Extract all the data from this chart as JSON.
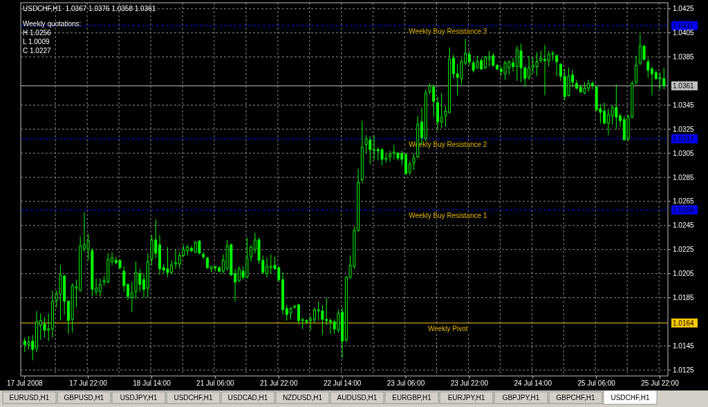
{
  "chart_data": [
    {
      "type": "candlestick",
      "title": "USDCHF,H1  1.0367 1.0376 1.0358 1.0361",
      "color": "#00ff00",
      "grid": true,
      "annotations": [
        "Weekly quotations:",
        "H 1.0256",
        "L 1.0009",
        "C 1.0227",
        "1.0411",
        "1.0317",
        "1.0258",
        "1.0164",
        "1.0361"
      ],
      "ylim": [
        1.012,
        1.043
      ],
      "yticks": [
        {
          "value": 1.0125,
          "label": "1.0125"
        },
        {
          "value": 1.0145,
          "label": "1.0145"
        },
        {
          "value": 1.0185,
          "label": "1.0185"
        },
        {
          "value": 1.0205,
          "label": "1.0205"
        },
        {
          "value": 1.0225,
          "label": "1.0225"
        },
        {
          "value": 1.0245,
          "label": "1.0245"
        },
        {
          "value": 1.0265,
          "label": "1.0265"
        },
        {
          "value": 1.0285,
          "label": "1.0285"
        },
        {
          "value": 1.0305,
          "label": "1.0305"
        },
        {
          "value": 1.0325,
          "label": "1.0325"
        },
        {
          "value": 1.0345,
          "label": "1.0345"
        },
        {
          "value": 1.0385,
          "label": "1.0385"
        },
        {
          "value": 1.0405,
          "label": "1.0405"
        },
        {
          "value": 1.0425,
          "label": "1.0425"
        }
      ],
      "ref_lines": [
        {
          "axis": "y",
          "value": 1.0411,
          "label": "Weekly Buy Resistance 3",
          "color": "#0000ff",
          "line_style": "dashed"
        },
        {
          "axis": "y",
          "value": 1.0317,
          "label": "Weekly Buy Resistance 2",
          "color": "#0000ff",
          "line_style": "dashed"
        },
        {
          "axis": "y",
          "value": 1.0258,
          "label": "Weekly Buy Resistance 1",
          "color": "#0000ff",
          "line_style": "dashed"
        },
        {
          "axis": "y",
          "value": 1.0164,
          "label": "Weekly Pivot",
          "color": "#ffcc00",
          "line_style": "solid"
        },
        {
          "axis": "y",
          "value": 1.0361,
          "label": null,
          "color": "#c0c0c0",
          "line_style": "solid"
        }
      ],
      "categories": [
        "17 Jul 2008",
        null,
        null,
        null,
        null,
        null,
        null,
        null,
        null,
        null,
        null,
        null,
        null,
        null,
        null,
        null,
        "17 Jul 22:00",
        null,
        null,
        null,
        null,
        null,
        null,
        null,
        null,
        null,
        null,
        null,
        null,
        null,
        null,
        null,
        "18 Jul 14:00",
        null,
        null,
        null,
        null,
        null,
        null,
        null,
        null,
        null,
        null,
        null,
        null,
        null,
        null,
        null,
        "21 Jul 06:00",
        null,
        null,
        null,
        null,
        null,
        null,
        null,
        null,
        null,
        null,
        null,
        null,
        null,
        null,
        null,
        "21 Jul 22:00",
        null,
        null,
        null,
        null,
        null,
        null,
        null,
        null,
        null,
        null,
        null,
        null,
        null,
        null,
        null,
        "22 Jul 14:00",
        null,
        null,
        null,
        null,
        null,
        null,
        null,
        null,
        null,
        null,
        null,
        null,
        null,
        null,
        null,
        "23 Jul 06:00",
        null,
        null,
        null,
        null,
        null,
        null,
        null,
        null,
        null,
        null,
        null,
        null,
        null,
        null,
        null,
        "23 Jul 22:00",
        null,
        null,
        null,
        null,
        null,
        null,
        null,
        null,
        null,
        null,
        null,
        null,
        null,
        null,
        null,
        "24 Jul 14:00",
        null,
        null,
        null,
        null,
        null,
        null,
        null,
        null,
        null,
        null,
        null,
        null,
        null,
        null,
        null,
        "25 Jul 06:00",
        null,
        null,
        null,
        null,
        null,
        null,
        null,
        null,
        null,
        null,
        null,
        null,
        null,
        null,
        null,
        "25 Jul 22:00",
        null
      ],
      "ohlc": [
        [
          1.0149,
          1.0152,
          1.014,
          1.0146
        ],
        [
          1.0146,
          1.0153,
          1.0142,
          1.0148
        ],
        [
          1.0149,
          1.0154,
          1.0133,
          1.0142
        ],
        [
          1.0143,
          1.0174,
          1.014,
          1.0165
        ],
        [
          1.0162,
          1.0172,
          1.015,
          1.0166
        ],
        [
          1.0163,
          1.0169,
          1.0152,
          1.0158
        ],
        [
          1.0158,
          1.0172,
          1.0149,
          1.0159
        ],
        [
          1.0159,
          1.0191,
          1.0152,
          1.0182
        ],
        [
          1.0183,
          1.0191,
          1.0177,
          1.0188
        ],
        [
          1.0188,
          1.0212,
          1.0166,
          1.0204
        ],
        [
          1.0203,
          1.0204,
          1.0171,
          1.0182
        ],
        [
          1.0182,
          1.0183,
          1.0155,
          1.0166
        ],
        [
          1.0167,
          1.0197,
          1.0156,
          1.0195
        ],
        [
          1.0193,
          1.02,
          1.0177,
          1.0194
        ],
        [
          1.0191,
          1.0236,
          1.019,
          1.0228
        ],
        [
          1.0226,
          1.0256,
          1.0223,
          1.0229
        ],
        [
          1.0225,
          1.0238,
          1.0216,
          1.0232
        ],
        [
          1.0224,
          1.0226,
          1.0186,
          1.0192
        ],
        [
          1.019,
          1.0201,
          1.0187,
          1.0193
        ],
        [
          1.019,
          1.0201,
          1.0186,
          1.0196
        ],
        [
          1.0198,
          1.0203,
          1.0195,
          1.0199
        ],
        [
          1.0198,
          1.0222,
          1.0197,
          1.0217
        ],
        [
          1.0215,
          1.0223,
          1.0212,
          1.0218
        ],
        [
          1.0216,
          1.0219,
          1.0213,
          1.0214
        ],
        [
          1.0216,
          1.0217,
          1.0209,
          1.021
        ],
        [
          1.0207,
          1.0211,
          1.019,
          1.0195
        ],
        [
          1.0196,
          1.0197,
          1.0183,
          1.0186
        ],
        [
          1.0185,
          1.0198,
          1.0173,
          1.0189
        ],
        [
          1.019,
          1.0215,
          1.0184,
          1.0206
        ],
        [
          1.0205,
          1.0209,
          1.019,
          1.0196
        ],
        [
          1.02,
          1.0205,
          1.0185,
          1.0192
        ],
        [
          1.0193,
          1.0222,
          1.0185,
          1.0215
        ],
        [
          1.0217,
          1.0237,
          1.0212,
          1.0233
        ],
        [
          1.0233,
          1.025,
          1.0218,
          1.0222
        ],
        [
          1.0229,
          1.0237,
          1.0204,
          1.0209
        ],
        [
          1.021,
          1.0213,
          1.0205,
          1.0208
        ],
        [
          1.0209,
          1.0227,
          1.0202,
          1.0206
        ],
        [
          1.0206,
          1.0216,
          1.0205,
          1.0212
        ],
        [
          1.0213,
          1.0225,
          1.0209,
          1.0214
        ],
        [
          1.0213,
          1.0223,
          1.0209,
          1.022
        ],
        [
          1.022,
          1.0229,
          1.0219,
          1.0225
        ],
        [
          1.0224,
          1.0229,
          1.022,
          1.0227
        ],
        [
          1.0226,
          1.0228,
          1.0223,
          1.0224
        ],
        [
          1.0223,
          1.0232,
          1.0222,
          1.0231
        ],
        [
          1.0232,
          1.0233,
          1.0221,
          1.0222
        ],
        [
          1.0221,
          1.0223,
          1.0217,
          1.0219
        ],
        [
          1.0218,
          1.0219,
          1.0209,
          1.021
        ],
        [
          1.0209,
          1.0211,
          1.0206,
          1.0211
        ],
        [
          1.0211,
          1.0211,
          1.0207,
          1.021
        ],
        [
          1.021,
          1.0211,
          1.0206,
          1.0207
        ],
        [
          1.0207,
          1.0221,
          1.0205,
          1.0216
        ],
        [
          1.0209,
          1.0233,
          1.0208,
          1.0228
        ],
        [
          1.0229,
          1.023,
          1.0203,
          1.0204
        ],
        [
          1.0205,
          1.0209,
          1.0182,
          1.0198
        ],
        [
          1.0199,
          1.0211,
          1.0198,
          1.0209
        ],
        [
          1.0207,
          1.0211,
          1.02,
          1.0202
        ],
        [
          1.0202,
          1.0235,
          1.0201,
          1.0218
        ],
        [
          1.0219,
          1.0229,
          1.0215,
          1.0227
        ],
        [
          1.0225,
          1.0239,
          1.0222,
          1.0233
        ],
        [
          1.0233,
          1.0235,
          1.0213,
          1.0216
        ],
        [
          1.0216,
          1.022,
          1.0205,
          1.0206
        ],
        [
          1.0205,
          1.0218,
          1.0202,
          1.0211
        ],
        [
          1.021,
          1.0221,
          1.0205,
          1.0211
        ],
        [
          1.0212,
          1.0219,
          1.0208,
          1.0209
        ],
        [
          1.021,
          1.0211,
          1.0198,
          1.02
        ],
        [
          1.02,
          1.0206,
          1.0171,
          1.0175
        ],
        [
          1.0176,
          1.0179,
          1.0166,
          1.0171
        ],
        [
          1.0172,
          1.0177,
          1.0167,
          1.0176
        ],
        [
          1.0177,
          1.0179,
          1.0176,
          1.0178
        ],
        [
          1.0179,
          1.018,
          1.0163,
          1.0166
        ],
        [
          1.0166,
          1.0168,
          1.0159,
          1.0167
        ],
        [
          1.0166,
          1.0167,
          1.0163,
          1.0165
        ],
        [
          1.0166,
          1.017,
          1.0158,
          1.0167
        ],
        [
          1.0167,
          1.0177,
          1.0164,
          1.0175
        ],
        [
          1.0174,
          1.0182,
          1.0166,
          1.0175
        ],
        [
          1.0174,
          1.0179,
          1.0154,
          1.0167
        ],
        [
          1.0167,
          1.0185,
          1.0162,
          1.0166
        ],
        [
          1.0166,
          1.0168,
          1.0155,
          1.0165
        ],
        [
          1.0165,
          1.0167,
          1.0155,
          1.0159
        ],
        [
          1.0158,
          1.0175,
          1.0156,
          1.0172
        ],
        [
          1.0173,
          1.0177,
          1.0135,
          1.0149
        ],
        [
          1.015,
          1.0203,
          1.0148,
          1.0202
        ],
        [
          1.0202,
          1.022,
          1.0201,
          1.0212
        ],
        [
          1.0211,
          1.0244,
          1.0209,
          1.0241
        ],
        [
          1.0241,
          1.0292,
          1.024,
          1.0281
        ],
        [
          1.0283,
          1.0332,
          1.028,
          1.031
        ],
        [
          1.0312,
          1.032,
          1.0305,
          1.0317
        ],
        [
          1.0316,
          1.0319,
          1.0296,
          1.0308
        ],
        [
          1.0307,
          1.032,
          1.0299,
          1.0308
        ],
        [
          1.0308,
          1.031,
          1.0299,
          1.0307
        ],
        [
          1.0308,
          1.0309,
          1.0295,
          1.03
        ],
        [
          1.03,
          1.0305,
          1.0297,
          1.0301
        ],
        [
          1.0302,
          1.0307,
          1.0298,
          1.0304
        ],
        [
          1.0305,
          1.0312,
          1.03,
          1.0306
        ],
        [
          1.0305,
          1.0306,
          1.0299,
          1.0301
        ],
        [
          1.0305,
          1.0307,
          1.0295,
          1.03
        ],
        [
          1.0304,
          1.0305,
          1.0287,
          1.0288
        ],
        [
          1.0289,
          1.0298,
          1.0287,
          1.0296
        ],
        [
          1.0297,
          1.0305,
          1.0291,
          1.0301
        ],
        [
          1.0302,
          1.0336,
          1.0301,
          1.0329
        ],
        [
          1.0331,
          1.0343,
          1.0312,
          1.0318
        ],
        [
          1.0317,
          1.0358,
          1.0315,
          1.0355
        ],
        [
          1.0356,
          1.0363,
          1.0354,
          1.0361
        ],
        [
          1.036,
          1.0362,
          1.0335,
          1.0348
        ],
        [
          1.0347,
          1.0352,
          1.0324,
          1.0331
        ],
        [
          1.0331,
          1.0355,
          1.0326,
          1.0335
        ],
        [
          1.0336,
          1.0344,
          1.0327,
          1.034
        ],
        [
          1.0339,
          1.0393,
          1.0338,
          1.0383
        ],
        [
          1.0384,
          1.0387,
          1.0367,
          1.0371
        ],
        [
          1.0371,
          1.0379,
          1.0353,
          1.0368
        ],
        [
          1.0367,
          1.0384,
          1.0362,
          1.0381
        ],
        [
          1.038,
          1.04,
          1.0378,
          1.0388
        ],
        [
          1.0387,
          1.039,
          1.0378,
          1.0381
        ],
        [
          1.038,
          1.0382,
          1.0372,
          1.0374
        ],
        [
          1.0376,
          1.0386,
          1.0375,
          1.0381
        ],
        [
          1.0382,
          1.0384,
          1.0374,
          1.0375
        ],
        [
          1.0376,
          1.0386,
          1.0375,
          1.0385
        ],
        [
          1.0383,
          1.039,
          1.0377,
          1.0385
        ],
        [
          1.0386,
          1.0388,
          1.0377,
          1.0378
        ],
        [
          1.0378,
          1.0379,
          1.0374,
          1.0375
        ],
        [
          1.0375,
          1.0377,
          1.0369,
          1.0373
        ],
        [
          1.0371,
          1.0382,
          1.0366,
          1.038
        ],
        [
          1.0376,
          1.0382,
          1.037,
          1.0381
        ],
        [
          1.038,
          1.0384,
          1.0373,
          1.0377
        ],
        [
          1.0377,
          1.0394,
          1.0365,
          1.0391
        ],
        [
          1.039,
          1.0396,
          1.0364,
          1.0376
        ],
        [
          1.0376,
          1.0377,
          1.036,
          1.0367
        ],
        [
          1.0368,
          1.0386,
          1.0366,
          1.0376
        ],
        [
          1.0376,
          1.0385,
          1.0371,
          1.0378
        ],
        [
          1.0377,
          1.0389,
          1.0369,
          1.0381
        ],
        [
          1.0382,
          1.039,
          1.038,
          1.0384
        ],
        [
          1.0383,
          1.0395,
          1.0353,
          1.0382
        ],
        [
          1.0382,
          1.039,
          1.0377,
          1.0387
        ],
        [
          1.0387,
          1.039,
          1.0382,
          1.0388
        ],
        [
          1.0386,
          1.0387,
          1.0369,
          1.0381
        ],
        [
          1.0379,
          1.038,
          1.0365,
          1.0369
        ],
        [
          1.0369,
          1.0375,
          1.0349,
          1.0352
        ],
        [
          1.0353,
          1.0376,
          1.0352,
          1.0369
        ],
        [
          1.037,
          1.0374,
          1.036,
          1.0364
        ],
        [
          1.0363,
          1.0366,
          1.0358,
          1.0359
        ],
        [
          1.036,
          1.0362,
          1.0355,
          1.0356
        ],
        [
          1.0355,
          1.0364,
          1.0354,
          1.0359
        ],
        [
          1.0359,
          1.0366,
          1.0356,
          1.0363
        ],
        [
          1.0363,
          1.0365,
          1.0358,
          1.0361
        ],
        [
          1.036,
          1.0361,
          1.034,
          1.0341
        ],
        [
          1.0342,
          1.0346,
          1.033,
          1.0339
        ],
        [
          1.034,
          1.0347,
          1.0329,
          1.033
        ],
        [
          1.033,
          1.0342,
          1.032,
          1.0337
        ],
        [
          1.0336,
          1.0345,
          1.0329,
          1.0343
        ],
        [
          1.0343,
          1.0362,
          1.0325,
          1.0335
        ],
        [
          1.0336,
          1.0338,
          1.0327,
          1.0332
        ],
        [
          1.0333,
          1.0336,
          1.0316,
          1.0316
        ],
        [
          1.0317,
          1.0337,
          1.0315,
          1.0335
        ],
        [
          1.0335,
          1.0365,
          1.0334,
          1.0363
        ],
        [
          1.0364,
          1.0386,
          1.0362,
          1.0378
        ],
        [
          1.038,
          1.0404,
          1.0378,
          1.0394
        ],
        [
          1.0394,
          1.0395,
          1.0382,
          1.0383
        ],
        [
          1.0381,
          1.0384,
          1.0368,
          1.0374
        ],
        [
          1.0375,
          1.0377,
          1.0353,
          1.0371
        ],
        [
          1.0372,
          1.0374,
          1.0366,
          1.0367
        ],
        [
          1.0367,
          1.0372,
          1.0358,
          1.0368
        ],
        [
          1.0367,
          1.0376,
          1.0358,
          1.0361
        ]
      ]
    },
    {
      "type": "other",
      "annotations": [
        "EURUSD,H1",
        "GBPUSD,H1",
        "USDJPY,H1",
        "USDCHF,H1",
        "USDCAD,H1",
        "NZDUSD,H1",
        "AUDUSD,H1",
        "EURGBP,H1",
        "EURJPY,H1",
        "GBPJPY,H1",
        "GBPCHF,H1",
        "USDCHF,H1"
      ]
    }
  ]
}
